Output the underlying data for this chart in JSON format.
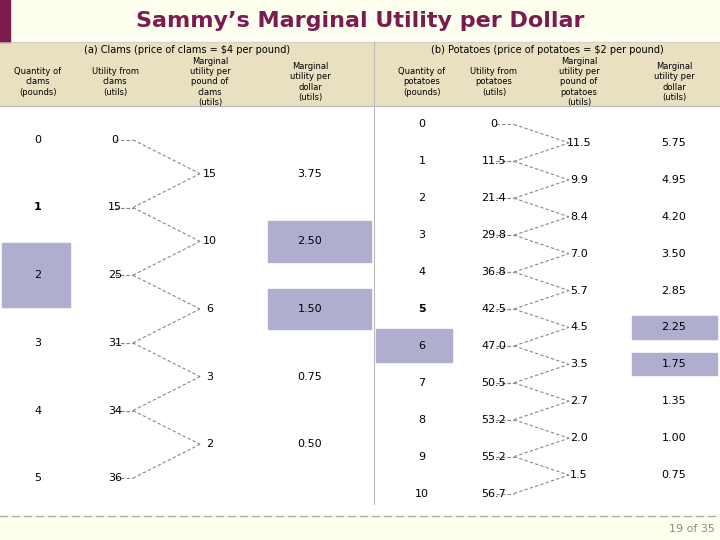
{
  "title": "Sammy’s Marginal Utility per Dollar",
  "title_color": "#7B1B4E",
  "bg_color": "#FFFFF0",
  "header_bg": "#E8E0C0",
  "slide_num": "19 of 35",
  "left_bar_color": "#7B1B4E",
  "clams_section_title": "(a) Clams (price of clams = $4 per pound)",
  "potatoes_section_title": "(b) Potatoes (price of potatoes = $2 per pound)",
  "clams_col_headers": [
    "Quantity of\nclams\n(pounds)",
    "Utility from\nclams\n(utils)",
    "Marginal\nutility per\npound of\nclams\n(utils)",
    "Marginal\nutility per\ndollar\n(utils)"
  ],
  "potatoes_col_headers": [
    "Quantity of\npotatoes\n(pounds)",
    "Utility from\npotatoes\n(utils)",
    "Marginal\nutility per\npound of\npotatoes\n(utils)",
    "Marginal\nutility per\ndollar\n(utils)"
  ],
  "clams_qty": [
    0,
    1,
    2,
    3,
    4,
    5
  ],
  "clams_utility": [
    0,
    15,
    25,
    31,
    34,
    36
  ],
  "clams_mu_pound": [
    15,
    10,
    6,
    3,
    2
  ],
  "clams_mu_dollar": [
    3.75,
    2.5,
    1.5,
    0.75,
    0.5
  ],
  "clams_bold_qty": [
    1
  ],
  "clams_highlight_qty": [
    2
  ],
  "clams_highlight_mu_dollar_indices": [
    1,
    2
  ],
  "potatoes_qty": [
    0,
    1,
    2,
    3,
    4,
    5,
    6,
    7,
    8,
    9,
    10
  ],
  "potatoes_utility": [
    0,
    11.5,
    21.4,
    29.8,
    36.8,
    42.5,
    47.0,
    50.5,
    53.2,
    55.2,
    56.7
  ],
  "potatoes_mu_pound": [
    11.5,
    9.9,
    8.4,
    7.0,
    5.7,
    4.5,
    3.5,
    2.7,
    2.0,
    1.5
  ],
  "potatoes_mu_dollar": [
    5.75,
    4.95,
    4.2,
    3.5,
    2.85,
    2.25,
    1.75,
    1.35,
    1.0,
    0.75
  ],
  "potatoes_bold_qty": [
    5
  ],
  "potatoes_highlight_qty": [
    6
  ],
  "potatoes_highlight_mu_dollar_indices": [
    5,
    6
  ],
  "highlight_color": "#B0AECE",
  "line_color": "#888888",
  "divider_color": "#BBBBBB",
  "bottom_dash_color": "#AAAAAA",
  "slide_num_color": "#888888"
}
